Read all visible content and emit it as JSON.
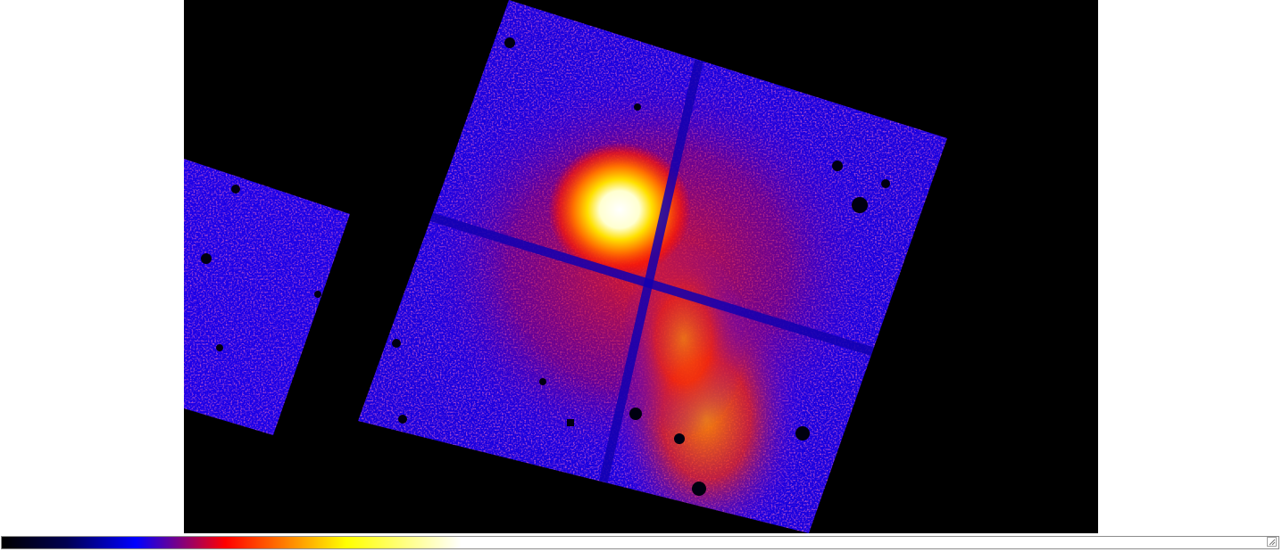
{
  "viewer": {
    "colormap": "heat",
    "colors": {
      "background": "#000000",
      "low": "#0a0050",
      "mid_low": "#2000ff",
      "mid": "#ff1a00",
      "mid_high": "#ffa000",
      "high": "#ffff00",
      "peak": "#ffffff"
    },
    "colorbar": {
      "stops": [
        {
          "pos": 0.0,
          "color": "#000000"
        },
        {
          "pos": 0.05,
          "color": "#000050"
        },
        {
          "pos": 0.105,
          "color": "#0000ff"
        },
        {
          "pos": 0.175,
          "color": "#ff0000"
        },
        {
          "pos": 0.27,
          "color": "#ffff00"
        },
        {
          "pos": 0.36,
          "color": "#ffffff"
        },
        {
          "pos": 1.0,
          "color": "#ffffff"
        }
      ]
    },
    "icons": {
      "resize_grip": "resize-grip-icon"
    }
  }
}
